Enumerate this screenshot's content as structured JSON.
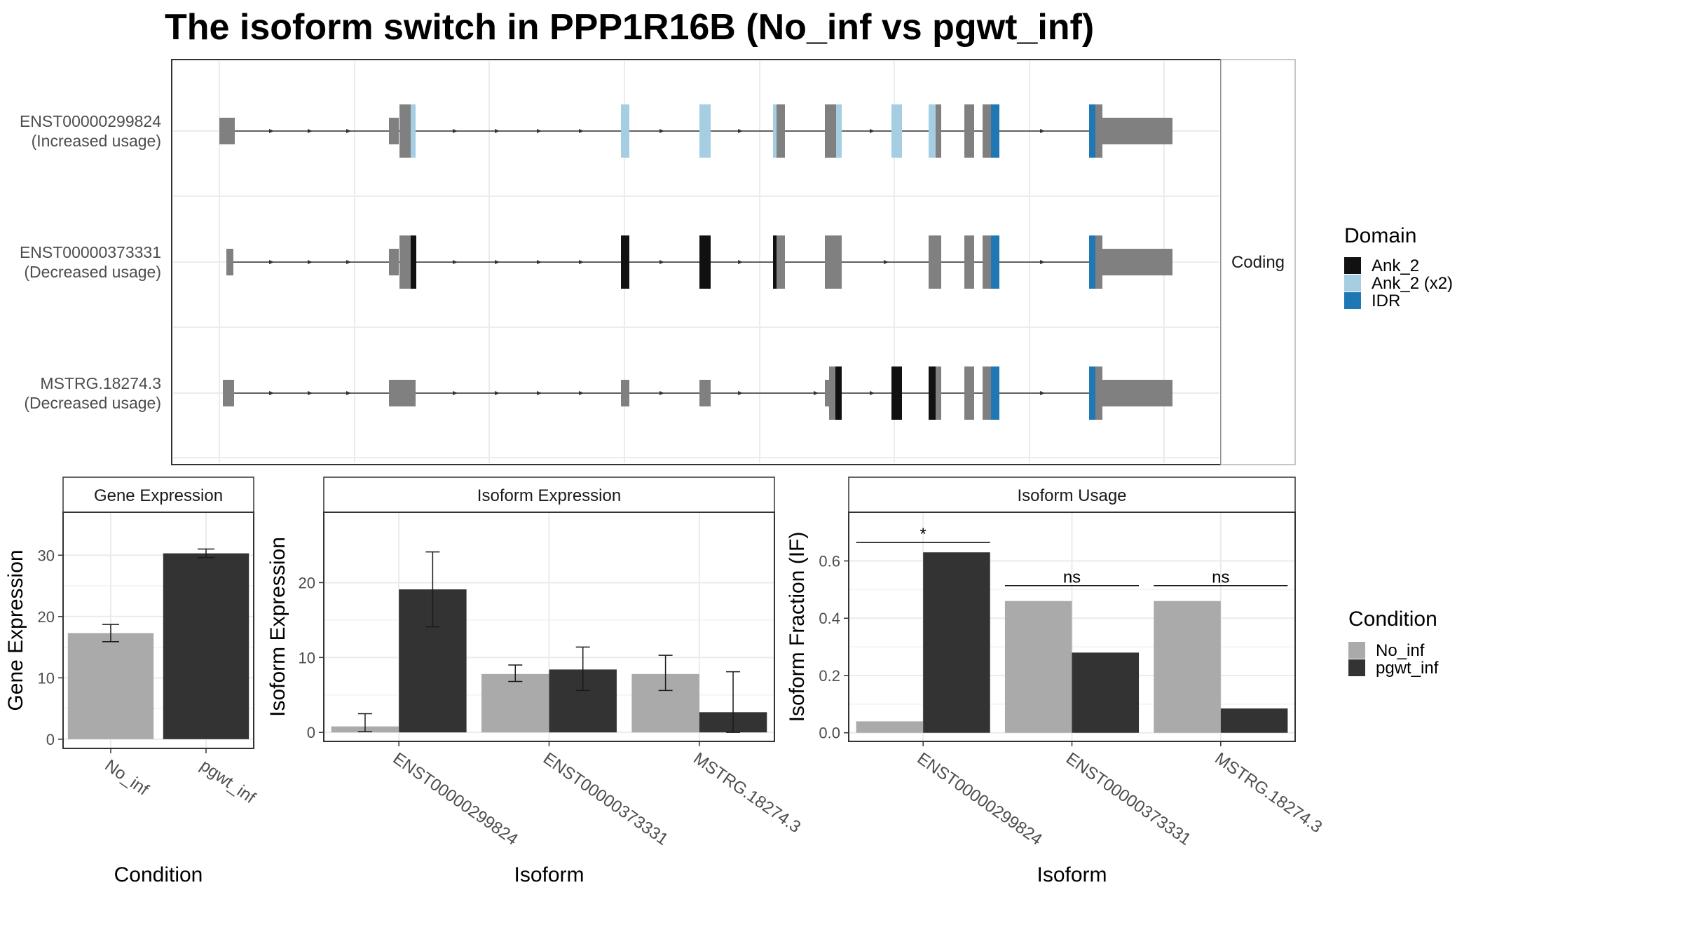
{
  "title": "The isoform switch in PPP1R16B (No_inf vs pgwt_inf)",
  "transcripts": {
    "facet_label": "Coding",
    "rows": [
      {
        "id": "ENST00000299824",
        "usage": "(Increased usage)"
      },
      {
        "id": "ENST00000373331",
        "usage": "(Decreased usage)"
      },
      {
        "id": "MSTRG.18274.3",
        "usage": "(Decreased usage)"
      }
    ],
    "domain_legend": {
      "title": "Domain",
      "items": [
        {
          "label": "Ank_2",
          "color": "#111111"
        },
        {
          "label": "Ank_2 (x2)",
          "color": "#a6cee3"
        },
        {
          "label": "IDR",
          "color": "#1f78b4"
        }
      ]
    }
  },
  "condition_legend": {
    "title": "Condition",
    "items": [
      {
        "label": "No_inf",
        "color": "#aaaaaa"
      },
      {
        "label": "pgwt_inf",
        "color": "#333333"
      }
    ]
  },
  "chart_data": [
    {
      "type": "bar",
      "title": "Gene Expression",
      "xlabel": "Condition",
      "ylabel": "Gene Expression",
      "categories": [
        "No_inf",
        "pgwt_inf"
      ],
      "values": [
        17.3,
        30.3
      ],
      "errors": [
        [
          15.9,
          18.7
        ],
        [
          29.6,
          31.0
        ]
      ],
      "colors": [
        "#aaaaaa",
        "#333333"
      ],
      "ylim": [
        -1.5,
        37
      ],
      "yticks": [
        0,
        10,
        20,
        30
      ],
      "grid": true
    },
    {
      "type": "bar",
      "title": "Isoform Expression",
      "xlabel": "Isoform",
      "ylabel": "Isoform Expression",
      "categories": [
        "ENST00000299824",
        "ENST00000373331",
        "MSTRG.18274.3"
      ],
      "series": [
        {
          "name": "No_inf",
          "values": [
            0.8,
            7.8,
            7.8
          ],
          "errors": [
            [
              0.1,
              2.5
            ],
            [
              6.8,
              9.0
            ],
            [
              5.6,
              10.3
            ]
          ]
        },
        {
          "name": "pgwt_inf",
          "values": [
            19.1,
            8.4,
            2.7
          ],
          "errors": [
            [
              14.1,
              24.1
            ],
            [
              5.6,
              11.4
            ],
            [
              0.0,
              8.1
            ]
          ]
        }
      ],
      "ylim": [
        -1.2,
        29.4
      ],
      "yticks": [
        0,
        10,
        20
      ],
      "grid": true
    },
    {
      "type": "bar",
      "title": "Isoform Usage",
      "xlabel": "Isoform",
      "ylabel": "Isoform Fraction (IF)",
      "categories": [
        "ENST00000299824",
        "ENST00000373331",
        "MSTRG.18274.3"
      ],
      "series": [
        {
          "name": "No_inf",
          "values": [
            0.04,
            0.46,
            0.46
          ]
        },
        {
          "name": "pgwt_inf",
          "values": [
            0.63,
            0.28,
            0.085
          ]
        }
      ],
      "significance": [
        "*",
        "ns",
        "ns"
      ],
      "ylim": [
        -0.03,
        0.77
      ],
      "yticks": [
        0.0,
        0.2,
        0.4,
        0.6
      ],
      "grid": true
    }
  ]
}
